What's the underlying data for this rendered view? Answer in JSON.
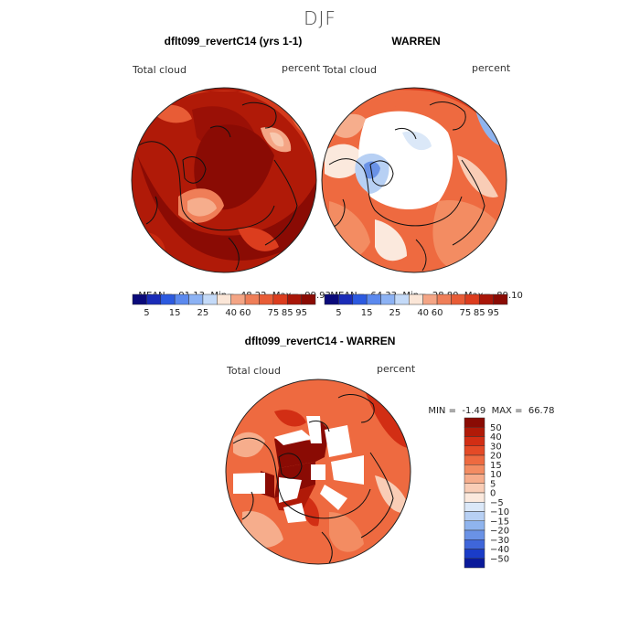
{
  "title": "DJF",
  "palette_positive": [
    "#fbe6d7",
    "#f8c8ae",
    "#f4a585",
    "#ef7e58",
    "#e85c36",
    "#dc3d1e",
    "#c8290f",
    "#a91608",
    "#8a0b04"
  ],
  "palette_full": [
    "#0a0a7a",
    "#1a2cb8",
    "#2c5ae0",
    "#5b89ee",
    "#8cb2f4",
    "#c4daf8",
    "#fbe6d7",
    "#f4a585",
    "#ef7e58",
    "#e85c36",
    "#dc3d1e",
    "#a91608",
    "#8a0b04"
  ],
  "panels": [
    {
      "name": "left",
      "title": "dflt099_revertC14 (yrs 1-1)",
      "var_label": "Total cloud",
      "units": "percent",
      "stats": {
        "mean_label": "MEAN=",
        "mean": "91.13",
        "min_label": "Min=",
        "min": "48.22",
        "max_label": "Max=",
        "max": "99.93"
      },
      "colorbar_ticks": [
        "5",
        "15",
        "25",
        "40",
        "60",
        "75",
        "85",
        "95"
      ]
    },
    {
      "name": "right",
      "title": "WARREN",
      "var_label": "Total cloud",
      "units": "percent",
      "stats": {
        "mean_label": "MEAN=",
        "mean": "64.33",
        "min_label": "Min=",
        "min": "28.80",
        "max_label": "Max=",
        "max": "89.10"
      },
      "colorbar_ticks": [
        "5",
        "15",
        "25",
        "40",
        "60",
        "75",
        "85",
        "95"
      ]
    }
  ],
  "diff": {
    "title": "dflt099_revertC14 - WARREN",
    "var_label": "Total cloud",
    "units": "percent",
    "min_label": "MIN =",
    "min": "-1.49",
    "max_label": "MAX =",
    "max": "66.78",
    "colorbar_ticks": [
      "50",
      "40",
      "30",
      "20",
      "15",
      "10",
      "5",
      "0",
      "−5",
      "−10",
      "−15",
      "−20",
      "−30",
      "−40",
      "−50"
    ],
    "colorbar_colors": [
      "#8a0b04",
      "#b01a08",
      "#d22e14",
      "#e44a26",
      "#ee6a40",
      "#f38c62",
      "#f6ad8c",
      "#f9cdb6",
      "#fbe9dd",
      "#dbe8f8",
      "#b7d0f4",
      "#8fb4ee",
      "#6a92e6",
      "#3f66da",
      "#1a3cc8",
      "#0a1a9a"
    ]
  }
}
